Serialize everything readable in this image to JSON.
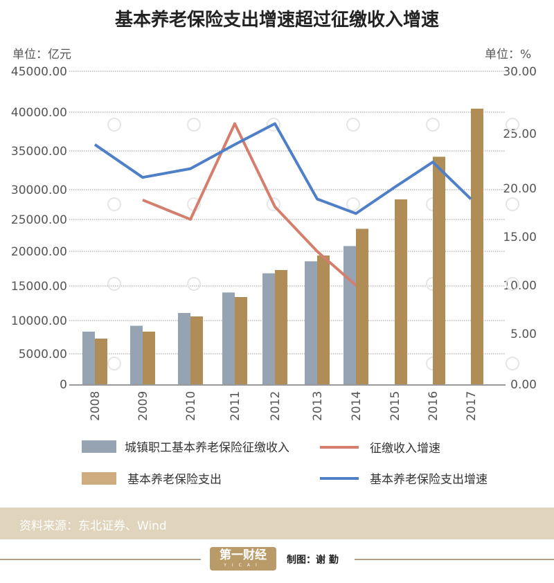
{
  "title": "基本养老保险支出增速超过征缴收入增速",
  "left_unit": "单位：亿元",
  "right_unit": "单位：%",
  "source": "资料来源：东北证券、Wind",
  "logo": {
    "text": "第一财经",
    "sub": "YICAI"
  },
  "credit": "制图：谢 勤",
  "colors": {
    "income_bar": "#96a3b3",
    "expense_bar": "#b08d57",
    "income_growth": "#d47f6e",
    "expense_growth": "#4f7fc6",
    "source_band": "#e1d4bd"
  },
  "chart_data": {
    "type": "bar+line",
    "title": "基本养老保险支出增速超过征缴收入增速",
    "categories": [
      "2008",
      "2009",
      "2010",
      "2011",
      "2012",
      "2013",
      "2014",
      "2015",
      "2016",
      "2017"
    ],
    "left_axis": {
      "unit": "单位：亿元",
      "ticks": [
        "45000.00",
        "40000.00",
        "35000.00",
        "30000.00",
        "25000.00",
        "20000.00",
        "15000.00",
        "10000.00",
        "5000.00",
        "0"
      ],
      "tick_values": [
        45000,
        40000,
        35000,
        30000,
        25000,
        20000,
        15000,
        10000,
        5000,
        0
      ],
      "ylim": [
        0,
        45000
      ]
    },
    "right_axis": {
      "unit": "单位：%",
      "ticks": [
        "30.00",
        "25.00",
        "20.00",
        "15.00",
        "10.00",
        "5.00",
        "0.00"
      ],
      "tick_values": [
        30,
        25,
        20,
        15,
        10,
        5,
        0
      ],
      "ylim": [
        0,
        30
      ]
    },
    "grid": true,
    "legend_position": "bottom",
    "series": [
      {
        "name": "城镇职工基本养老保险征缴收入",
        "type": "bar",
        "axis": "left",
        "values": [
          8340,
          9220,
          11100,
          14060,
          16830,
          18560,
          20830,
          null,
          null,
          null
        ]
      },
      {
        "name": "基本养老保险支出",
        "type": "bar",
        "axis": "left",
        "values": [
          7290,
          8340,
          10600,
          13400,
          17300,
          19400,
          23540,
          28380,
          34250,
          40430
        ]
      },
      {
        "name": "征缴收入增速",
        "type": "line",
        "axis": "right",
        "values": [
          null,
          18.8,
          16.8,
          25.8,
          18.1,
          13.5,
          10.0,
          null,
          null,
          null
        ]
      },
      {
        "name": "基本养老保险支出增速",
        "type": "line",
        "axis": "right",
        "values": [
          24.0,
          21.0,
          21.8,
          24.0,
          25.8,
          18.9,
          17.4,
          20.1,
          22.4,
          18.9
        ]
      }
    ]
  }
}
